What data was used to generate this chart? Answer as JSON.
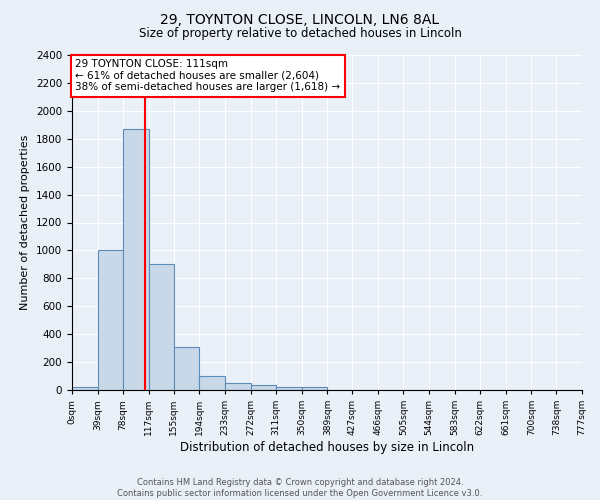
{
  "title1": "29, TOYNTON CLOSE, LINCOLN, LN6 8AL",
  "title2": "Size of property relative to detached houses in Lincoln",
  "xlabel": "Distribution of detached houses by size in Lincoln",
  "ylabel": "Number of detached properties",
  "bin_labels": [
    "0sqm",
    "39sqm",
    "78sqm",
    "117sqm",
    "155sqm",
    "194sqm",
    "233sqm",
    "272sqm",
    "311sqm",
    "350sqm",
    "389sqm",
    "427sqm",
    "466sqm",
    "505sqm",
    "544sqm",
    "583sqm",
    "622sqm",
    "661sqm",
    "700sqm",
    "738sqm",
    "777sqm"
  ],
  "bin_edges": [
    0,
    39,
    78,
    117,
    155,
    194,
    233,
    272,
    311,
    350,
    389,
    427,
    466,
    505,
    544,
    583,
    622,
    661,
    700,
    738,
    777
  ],
  "bar_heights": [
    20,
    1005,
    1870,
    900,
    310,
    100,
    47,
    35,
    25,
    20,
    0,
    0,
    0,
    0,
    0,
    0,
    0,
    0,
    0,
    0
  ],
  "bar_color": "#c8d8e8",
  "bar_edge_color": "#5b8db8",
  "vline_x": 111,
  "vline_color": "red",
  "ylim": [
    0,
    2400
  ],
  "xlim": [
    0,
    777
  ],
  "annotation_text": "29 TOYNTON CLOSE: 111sqm\n← 61% of detached houses are smaller (2,604)\n38% of semi-detached houses are larger (1,618) →",
  "annotation_box_color": "white",
  "annotation_box_edge_color": "red",
  "footer_text": "Contains HM Land Registry data © Crown copyright and database right 2024.\nContains public sector information licensed under the Open Government Licence v3.0.",
  "bg_color": "#eaf0f8",
  "plot_bg_color": "#eaf0f8",
  "grid_color": "white",
  "yticks": [
    0,
    200,
    400,
    600,
    800,
    1000,
    1200,
    1400,
    1600,
    1800,
    2000,
    2200,
    2400
  ]
}
